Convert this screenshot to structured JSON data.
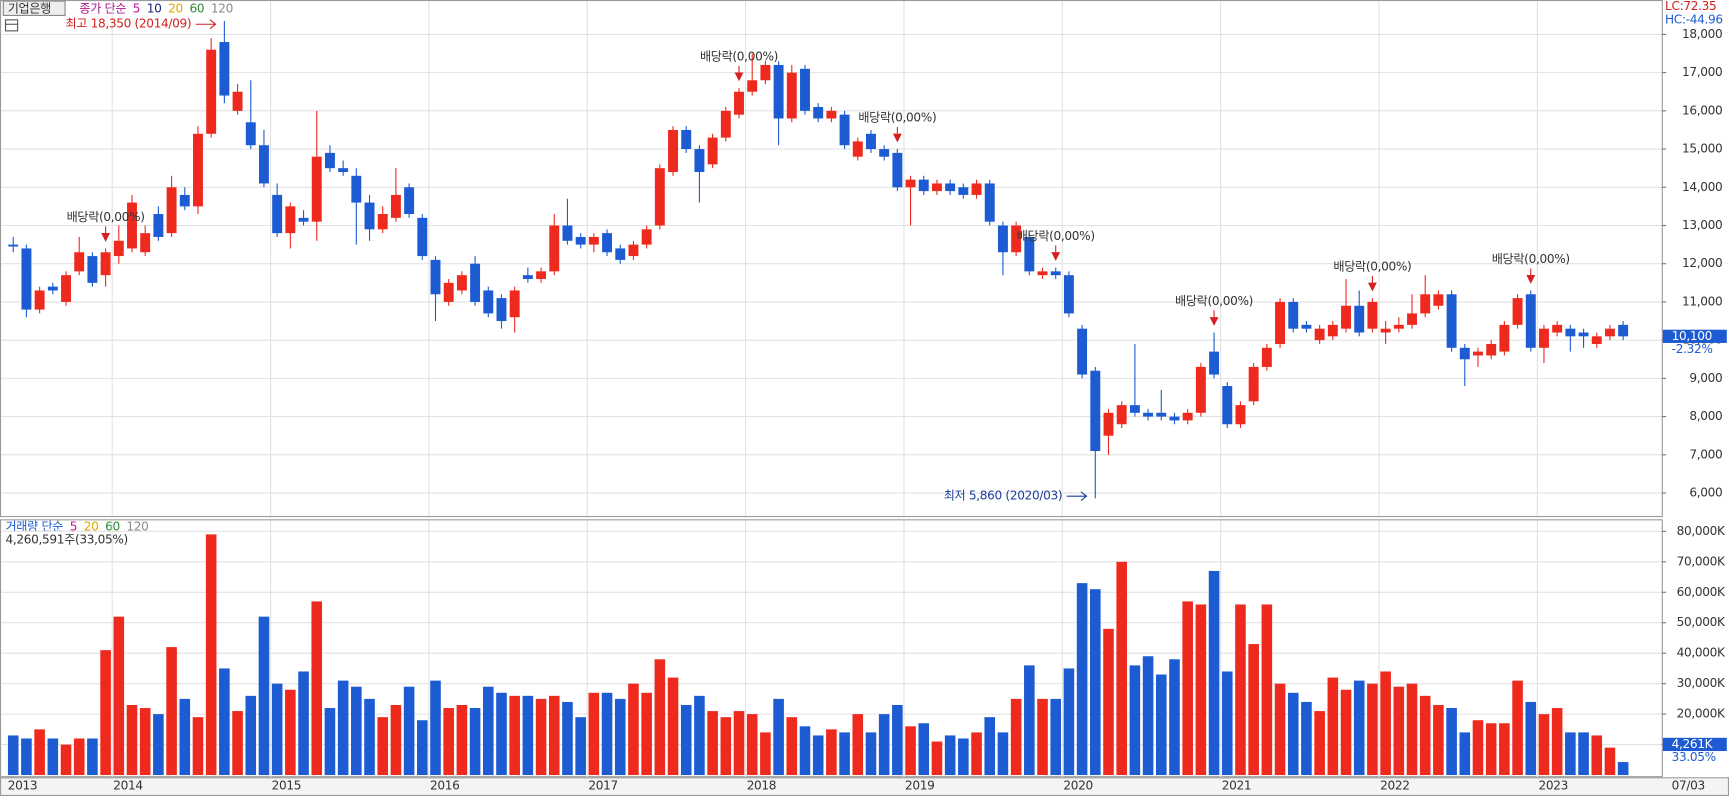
{
  "chart_data": {
    "type": "candlestick",
    "stock_name": "기업은행",
    "price_legend": {
      "label": "종가 단순",
      "periods": [
        {
          "name": "5",
          "color": "#c0179a"
        },
        {
          "name": "10",
          "color": "#1a237e"
        },
        {
          "name": "20",
          "color": "#e0a800"
        },
        {
          "name": "60",
          "color": "#2e8b3a"
        },
        {
          "name": "120",
          "color": "#8a8a8a"
        }
      ]
    },
    "volume_legend": {
      "label": "거래량 단순",
      "periods": [
        {
          "name": "5",
          "color": "#c0179a"
        },
        {
          "name": "20",
          "color": "#e0a800"
        },
        {
          "name": "60",
          "color": "#2e8b3a"
        },
        {
          "name": "120",
          "color": "#8a8a8a"
        }
      ]
    },
    "lc": "LC:72.35",
    "hc": "HC:-44.96",
    "up_color": "#ee2a1e",
    "down_color": "#1c5bd1",
    "categories": [
      "2013",
      null,
      null,
      null,
      null,
      null,
      null,
      null,
      "2014",
      null,
      null,
      null,
      null,
      null,
      null,
      null,
      null,
      null,
      null,
      null,
      "2015",
      null,
      null,
      null,
      null,
      null,
      null,
      null,
      null,
      null,
      null,
      null,
      "2016",
      null,
      null,
      null,
      null,
      null,
      null,
      null,
      null,
      null,
      null,
      null,
      "2017",
      null,
      null,
      null,
      null,
      null,
      null,
      null,
      null,
      null,
      null,
      null,
      "2018",
      null,
      null,
      null,
      null,
      null,
      null,
      null,
      null,
      null,
      null,
      null,
      "2019",
      null,
      null,
      null,
      null,
      null,
      null,
      null,
      null,
      null,
      null,
      null,
      "2020",
      null,
      null,
      null,
      null,
      null,
      null,
      null,
      null,
      null,
      null,
      null,
      "2021",
      null,
      null,
      null,
      null,
      null,
      null,
      null,
      null,
      null,
      null,
      null,
      "2022",
      null,
      null,
      null,
      null,
      null,
      null,
      null,
      null,
      null,
      null,
      null,
      "2023",
      null,
      null,
      null,
      null,
      null,
      null
    ],
    "date_label": "07/03",
    "ohlc": [
      [
        12500,
        12700,
        12300,
        12450
      ],
      [
        12400,
        12500,
        10600,
        10800
      ],
      [
        10800,
        11400,
        10700,
        11300
      ],
      [
        11400,
        11500,
        11200,
        11300
      ],
      [
        11000,
        11800,
        10900,
        11700
      ],
      [
        11800,
        12700,
        11700,
        12300
      ],
      [
        12200,
        12300,
        11400,
        11500
      ],
      [
        11700,
        12400,
        11400,
        12300
      ],
      [
        12200,
        13000,
        12000,
        12600
      ],
      [
        12400,
        13800,
        12300,
        13600
      ],
      [
        12300,
        13000,
        12200,
        12800
      ],
      [
        13300,
        13500,
        12600,
        12700
      ],
      [
        12800,
        14300,
        12700,
        14000
      ],
      [
        13800,
        14000,
        13400,
        13500
      ],
      [
        13500,
        15600,
        13300,
        15400
      ],
      [
        15400,
        17900,
        15300,
        17600
      ],
      [
        17800,
        18350,
        16200,
        16400
      ],
      [
        16000,
        16700,
        15900,
        16500
      ],
      [
        15700,
        16800,
        15000,
        15100
      ],
      [
        15100,
        15500,
        14000,
        14100
      ],
      [
        13800,
        14100,
        12700,
        12800
      ],
      [
        12800,
        13600,
        12400,
        13500
      ],
      [
        13200,
        13400,
        13000,
        13100
      ],
      [
        13100,
        16000,
        12600,
        14800
      ],
      [
        14900,
        15100,
        14400,
        14500
      ],
      [
        14500,
        14700,
        14300,
        14400
      ],
      [
        14300,
        14500,
        12500,
        13600
      ],
      [
        13600,
        13800,
        12600,
        12900
      ],
      [
        12900,
        13500,
        12800,
        13300
      ],
      [
        13200,
        14500,
        13100,
        13800
      ],
      [
        14000,
        14100,
        13200,
        13300
      ],
      [
        13200,
        13300,
        12100,
        12200
      ],
      [
        12100,
        12200,
        10500,
        11200
      ],
      [
        11000,
        11600,
        10900,
        11500
      ],
      [
        11300,
        11800,
        11200,
        11700
      ],
      [
        12000,
        12200,
        10900,
        11000
      ],
      [
        11300,
        11400,
        10600,
        10700
      ],
      [
        11100,
        11200,
        10300,
        10500
      ],
      [
        10600,
        11400,
        10200,
        11300
      ],
      [
        11700,
        11900,
        11500,
        11600
      ],
      [
        11600,
        11900,
        11500,
        11800
      ],
      [
        11800,
        13300,
        11700,
        13000
      ],
      [
        13000,
        13700,
        12500,
        12600
      ],
      [
        12700,
        12800,
        12400,
        12500
      ],
      [
        12500,
        12800,
        12300,
        12700
      ],
      [
        12800,
        12900,
        12200,
        12300
      ],
      [
        12400,
        12500,
        12000,
        12100
      ],
      [
        12200,
        12600,
        12100,
        12500
      ],
      [
        12500,
        13000,
        12400,
        12900
      ],
      [
        13000,
        14600,
        12900,
        14500
      ],
      [
        14400,
        15600,
        14300,
        15500
      ],
      [
        15500,
        15600,
        14900,
        15000
      ],
      [
        15000,
        15100,
        13600,
        14400
      ],
      [
        14600,
        15400,
        14500,
        15300
      ],
      [
        15300,
        16100,
        15200,
        16000
      ],
      [
        15900,
        16600,
        15800,
        16500
      ],
      [
        16500,
        17500,
        16400,
        16800
      ],
      [
        16800,
        17300,
        16700,
        17200
      ],
      [
        17200,
        17300,
        15100,
        15800
      ],
      [
        15800,
        17200,
        15700,
        17000
      ],
      [
        17100,
        17200,
        15900,
        16000
      ],
      [
        16100,
        16200,
        15700,
        15800
      ],
      [
        15800,
        16100,
        15700,
        16000
      ],
      [
        15900,
        16000,
        15000,
        15100
      ],
      [
        14800,
        15300,
        14700,
        15200
      ],
      [
        15400,
        15500,
        14900,
        15000
      ],
      [
        15000,
        15100,
        14700,
        14800
      ],
      [
        14900,
        15000,
        13900,
        14000
      ],
      [
        14000,
        14300,
        13000,
        14200
      ],
      [
        14200,
        14300,
        13800,
        13900
      ],
      [
        13900,
        14200,
        13800,
        14100
      ],
      [
        14100,
        14200,
        13800,
        13900
      ],
      [
        14000,
        14100,
        13700,
        13800
      ],
      [
        13800,
        14200,
        13700,
        14100
      ],
      [
        14100,
        14200,
        13000,
        13100
      ],
      [
        13000,
        13100,
        11700,
        12300
      ],
      [
        12300,
        13100,
        12200,
        13000
      ],
      [
        12700,
        12800,
        11700,
        11800
      ],
      [
        11700,
        11900,
        11600,
        11800
      ],
      [
        11800,
        11900,
        11600,
        11700
      ],
      [
        11700,
        11800,
        10600,
        10700
      ],
      [
        10300,
        10400,
        9000,
        9100
      ],
      [
        9200,
        9300,
        5860,
        7100
      ],
      [
        7500,
        8200,
        7000,
        8100
      ],
      [
        7800,
        8400,
        7700,
        8300
      ],
      [
        8300,
        9900,
        8000,
        8100
      ],
      [
        8100,
        8200,
        7900,
        8000
      ],
      [
        8100,
        8700,
        7900,
        8000
      ],
      [
        8000,
        8100,
        7800,
        7900
      ],
      [
        7900,
        8200,
        7800,
        8100
      ],
      [
        8100,
        9400,
        8000,
        9300
      ],
      [
        9700,
        10200,
        9000,
        9100
      ],
      [
        8800,
        8900,
        7700,
        7800
      ],
      [
        7800,
        8400,
        7700,
        8300
      ],
      [
        8400,
        9400,
        8300,
        9300
      ],
      [
        9300,
        9900,
        9200,
        9800
      ],
      [
        9900,
        11100,
        9800,
        11000
      ],
      [
        11000,
        11100,
        10200,
        10300
      ],
      [
        10400,
        10500,
        10200,
        10300
      ],
      [
        10000,
        10400,
        9900,
        10300
      ],
      [
        10100,
        10500,
        10000,
        10400
      ],
      [
        10300,
        11600,
        10200,
        10900
      ],
      [
        10900,
        11300,
        10100,
        10200
      ],
      [
        10300,
        11100,
        10200,
        11000
      ],
      [
        10200,
        10500,
        9900,
        10300
      ],
      [
        10300,
        10600,
        10200,
        10400
      ],
      [
        10400,
        11200,
        10300,
        10700
      ],
      [
        10700,
        11700,
        10600,
        11200
      ],
      [
        10900,
        11300,
        10800,
        11200
      ],
      [
        11200,
        11300,
        9700,
        9800
      ],
      [
        9800,
        9900,
        8800,
        9500
      ],
      [
        9600,
        9800,
        9300,
        9700
      ],
      [
        9600,
        10000,
        9500,
        9900
      ],
      [
        9700,
        10500,
        9600,
        10400
      ],
      [
        10400,
        11200,
        10300,
        11100
      ],
      [
        11200,
        11300,
        9700,
        9800
      ],
      [
        9800,
        10400,
        9400,
        10300
      ],
      [
        10200,
        10500,
        10100,
        10400
      ],
      [
        10300,
        10400,
        9700,
        10100
      ],
      [
        10200,
        10300,
        9800,
        10100
      ],
      [
        9900,
        10200,
        9800,
        10100
      ],
      [
        10100,
        10400,
        10000,
        10300
      ],
      [
        10400,
        10500,
        10000,
        10100
      ]
    ],
    "volume": [
      13000,
      12000,
      15000,
      12000,
      10000,
      12000,
      12000,
      41000,
      52000,
      23000,
      22000,
      20000,
      42000,
      25000,
      19000,
      79000,
      35000,
      21000,
      26000,
      52000,
      30000,
      28000,
      34000,
      57000,
      22000,
      31000,
      29000,
      25000,
      19000,
      23000,
      29000,
      18000,
      31000,
      22000,
      23000,
      22000,
      29000,
      27000,
      26000,
      26000,
      25000,
      26000,
      24000,
      19000,
      27000,
      27000,
      25000,
      30000,
      27000,
      38000,
      32000,
      23000,
      26000,
      21000,
      19000,
      21000,
      20000,
      14000,
      25000,
      19000,
      16000,
      13000,
      15000,
      14000,
      20000,
      14000,
      20000,
      23000,
      16000,
      17000,
      11000,
      13000,
      12000,
      14000,
      19000,
      14000,
      25000,
      36000,
      25000,
      25000,
      35000,
      63000,
      61000,
      48000,
      70000,
      36000,
      39000,
      33000,
      38000,
      57000,
      56000,
      67000,
      34000,
      56000,
      43000,
      56000,
      30000,
      27000,
      24000,
      21000,
      32000,
      28000,
      31000,
      30000,
      34000,
      29000,
      30000,
      26000,
      23000,
      22000,
      14000,
      18000,
      17000,
      17000,
      31000,
      24000,
      20000,
      22000,
      14000,
      14000,
      13000,
      9000,
      4261
    ],
    "ylim": [
      5400,
      18900
    ],
    "yticks": [
      {
        "value": 6000,
        "label": "6,000"
      },
      {
        "value": 7000,
        "label": "7,000"
      },
      {
        "value": 8000,
        "label": "8,000"
      },
      {
        "value": 9000,
        "label": "9,000"
      },
      {
        "value": 10000,
        "label": "10,000"
      },
      {
        "value": 11000,
        "label": "11,000"
      },
      {
        "value": 12000,
        "label": "12,000"
      },
      {
        "value": 13000,
        "label": "13,000"
      },
      {
        "value": 14000,
        "label": "14,000"
      },
      {
        "value": 15000,
        "label": "15,000"
      },
      {
        "value": 16000,
        "label": "16,000"
      },
      {
        "value": 17000,
        "label": "17,000"
      },
      {
        "value": 18000,
        "label": "18,000"
      }
    ],
    "vol_ylim": [
      0,
      83600
    ],
    "vol_ticks": [
      {
        "value": 10000,
        "label": "10,000K"
      },
      {
        "value": 20000,
        "label": "20,000K"
      },
      {
        "value": 30000,
        "label": "30,000K"
      },
      {
        "value": 40000,
        "label": "40,000K"
      },
      {
        "value": 50000,
        "label": "50,000K"
      },
      {
        "value": 60000,
        "label": "60,000K"
      },
      {
        "value": 70000,
        "label": "70,000K"
      },
      {
        "value": 80000,
        "label": "80,000K"
      }
    ],
    "last_price": {
      "value": 10100,
      "label": "10,100"
    },
    "change": "-2.32%",
    "last_volume": {
      "value": 4261,
      "label": "4,261K"
    },
    "volume_ratio": "33.05%",
    "volume_status": "4,260,591주(33,05%)",
    "high_note": {
      "text": "최고 18,350 (2014/09)",
      "candle": 16
    },
    "low_note": {
      "text": "최저 5,860 (2020/03)",
      "candle": 82
    },
    "dividends": [
      {
        "text": "배당락(0,00%)",
        "candle": 7
      },
      {
        "text": "배당락(0,00%)",
        "candle": 55
      },
      {
        "text": "배당락(0,00%)",
        "candle": 67
      },
      {
        "text": "배당락(0,00%)",
        "candle": 79
      },
      {
        "text": "배당락(0,00%)",
        "candle": 91
      },
      {
        "text": "배당락(0,00%)",
        "candle": 103
      },
      {
        "text": "배당락(0,00%)",
        "candle": 115
      }
    ]
  }
}
